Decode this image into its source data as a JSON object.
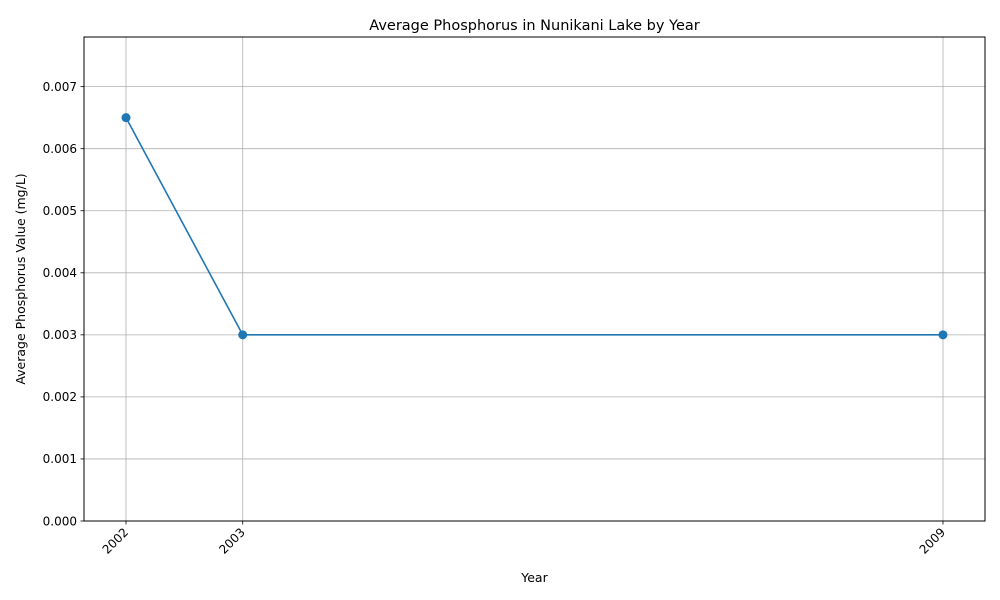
{
  "chart_data": {
    "type": "line",
    "title": "Average Phosphorus in Nunikani Lake by Year",
    "xlabel": "Year",
    "ylabel": "Average Phosphorus Value (mg/L)",
    "x": [
      2002,
      2003,
      2009
    ],
    "x_tick_labels": [
      "2002",
      "2003",
      "2009"
    ],
    "xlim": [
      2001.64,
      2009.36
    ],
    "series": [
      {
        "values": [
          0.0065,
          0.003,
          0.003
        ],
        "color": "#1f77b4",
        "marker": "circle"
      }
    ],
    "y_ticks": [
      0,
      0.001,
      0.002,
      0.003,
      0.004,
      0.005,
      0.006,
      0.007
    ],
    "y_tick_labels": [
      "0.000",
      "0.001",
      "0.002",
      "0.003",
      "0.004",
      "0.005",
      "0.006",
      "0.007"
    ],
    "ylim": [
      0,
      0.0078
    ],
    "grid": true,
    "grid_color": "#b0b0b0",
    "x_tick_rotation": 45
  }
}
